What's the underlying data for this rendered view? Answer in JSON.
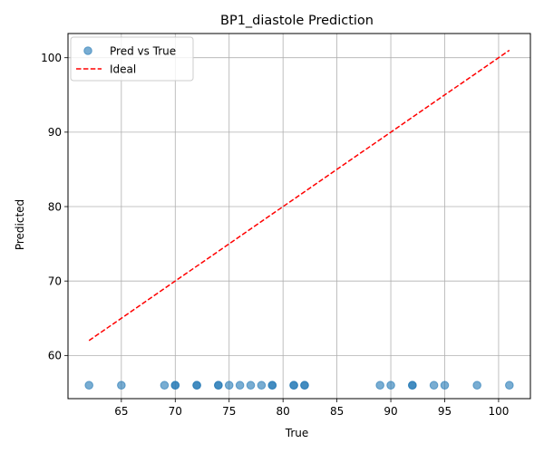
{
  "chart_data": {
    "type": "scatter",
    "title": "BP1_diastole Prediction",
    "xlabel": "True",
    "ylabel": "Predicted",
    "xlim": [
      60.05,
      102.95
    ],
    "ylim": [
      54.2,
      103.25
    ],
    "xticks": [
      65,
      70,
      75,
      80,
      85,
      90,
      95,
      100
    ],
    "yticks": [
      60,
      70,
      80,
      90,
      100
    ],
    "grid": true,
    "legend_position": "top-left",
    "series": [
      {
        "name": "Pred vs True",
        "kind": "scatter",
        "color": "#1f77b4",
        "x": [
          62,
          65,
          69,
          70,
          70,
          72,
          72,
          74,
          74,
          75,
          76,
          77,
          78,
          79,
          79,
          81,
          81,
          82,
          82,
          89,
          90,
          92,
          92,
          94,
          95,
          98,
          101
        ],
        "y": [
          56,
          56,
          56,
          56,
          56,
          56,
          56,
          56,
          56,
          56,
          56,
          56,
          56,
          56,
          56,
          56,
          56,
          56,
          56,
          56,
          56,
          56,
          56,
          56,
          56,
          56,
          56
        ]
      },
      {
        "name": "Ideal",
        "kind": "line",
        "style": "dashed",
        "color": "#ff0000",
        "x": [
          62,
          101
        ],
        "y": [
          62,
          101
        ]
      }
    ]
  }
}
